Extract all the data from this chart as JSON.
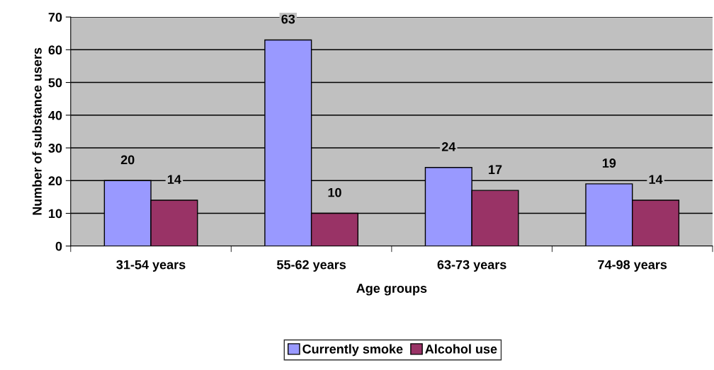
{
  "chart_data": {
    "type": "bar",
    "xlabel": "Age groups",
    "ylabel": "Number of substance users",
    "categories": [
      "31-54 years",
      "55-62 years",
      "63-73 years",
      "74-98 years"
    ],
    "series": [
      {
        "name": "Currently smoke",
        "color": "#9999ff",
        "values": [
          20,
          63,
          24,
          19
        ]
      },
      {
        "name": "Alcohol use",
        "color": "#993366",
        "values": [
          14,
          10,
          17,
          14
        ]
      }
    ],
    "ylim": [
      0,
      70
    ],
    "yticks": [
      0,
      10,
      20,
      30,
      40,
      50,
      60,
      70
    ],
    "grid": "y",
    "legend": "bottom",
    "data_labels": true
  }
}
